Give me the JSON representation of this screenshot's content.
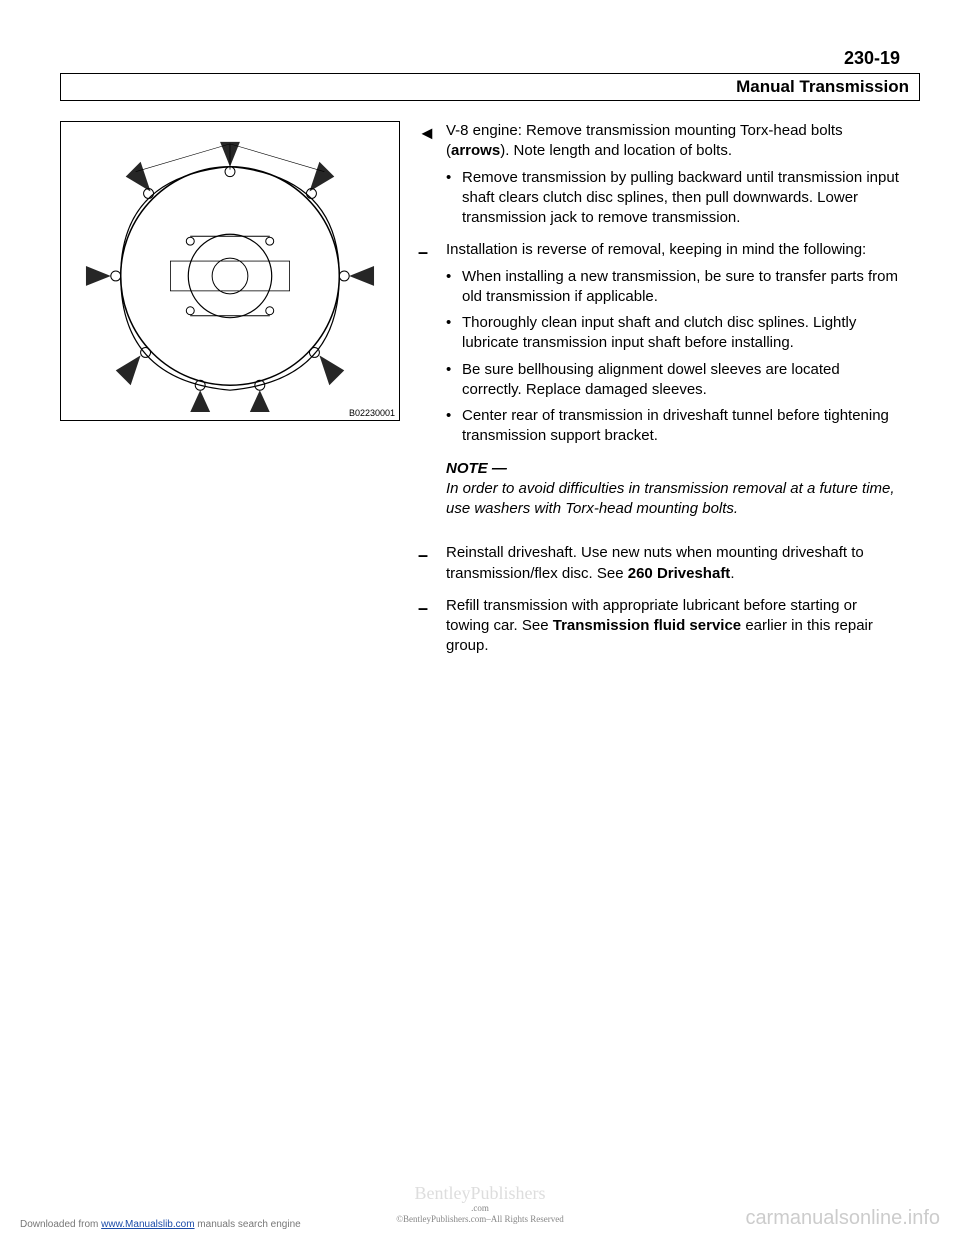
{
  "page_number": "230-19",
  "header_title": "Manual Transmission",
  "figure_id": "B02230001",
  "figure": {
    "outline_color": "#000000",
    "bolt_arrow_count": 10,
    "bg": "#ffffff"
  },
  "steps": [
    {
      "marker": "◄",
      "lead_html": "V-8 engine: Remove transmission mounting Torx-head bolts (<span class='b'>arrows</span>). Note length and location of bolts.",
      "bullets": [
        "Remove transmission by pulling backward until transmission input shaft clears clutch disc splines, then pull downwards. Lower transmission jack to remove transmission."
      ]
    },
    {
      "marker": "–",
      "lead_html": "Installation is reverse of removal, keeping in mind the following:",
      "bullets": [
        "When installing a new transmission, be sure to transfer parts from old transmission if applicable.",
        "Thoroughly clean input shaft and clutch disc splines. Lightly lubricate transmission input shaft before installing.",
        "Be sure bellhousing alignment dowel sleeves are located correctly. Replace damaged sleeves.",
        "Center rear of transmission in driveshaft tunnel before tightening transmission support bracket."
      ],
      "note_head": "NOTE —",
      "note_body": "In order to avoid difficulties in transmission removal at a future time, use washers with Torx-head mounting bolts."
    },
    {
      "marker": "–",
      "lead_html": "Reinstall driveshaft. Use new nuts when mounting driveshaft to transmission/flex disc. See <span class='b'>260 Driveshaft</span>.",
      "bullets": []
    },
    {
      "marker": "–",
      "lead_html": "Refill transmission with appropriate lubricant before starting or towing car. See <span class='b'>Transmission fluid service</span> earlier in this repair group.",
      "bullets": []
    }
  ],
  "footer": {
    "left_pre": "Downloaded from ",
    "left_link": "www.Manualslib.com",
    "left_post": " manuals search engine",
    "center_main": "BentleyPublishers",
    "center_sub1": ".com",
    "center_sub2": "©BentleyPublishers.com–All Rights Reserved",
    "right": "carmanualsonline.info"
  }
}
